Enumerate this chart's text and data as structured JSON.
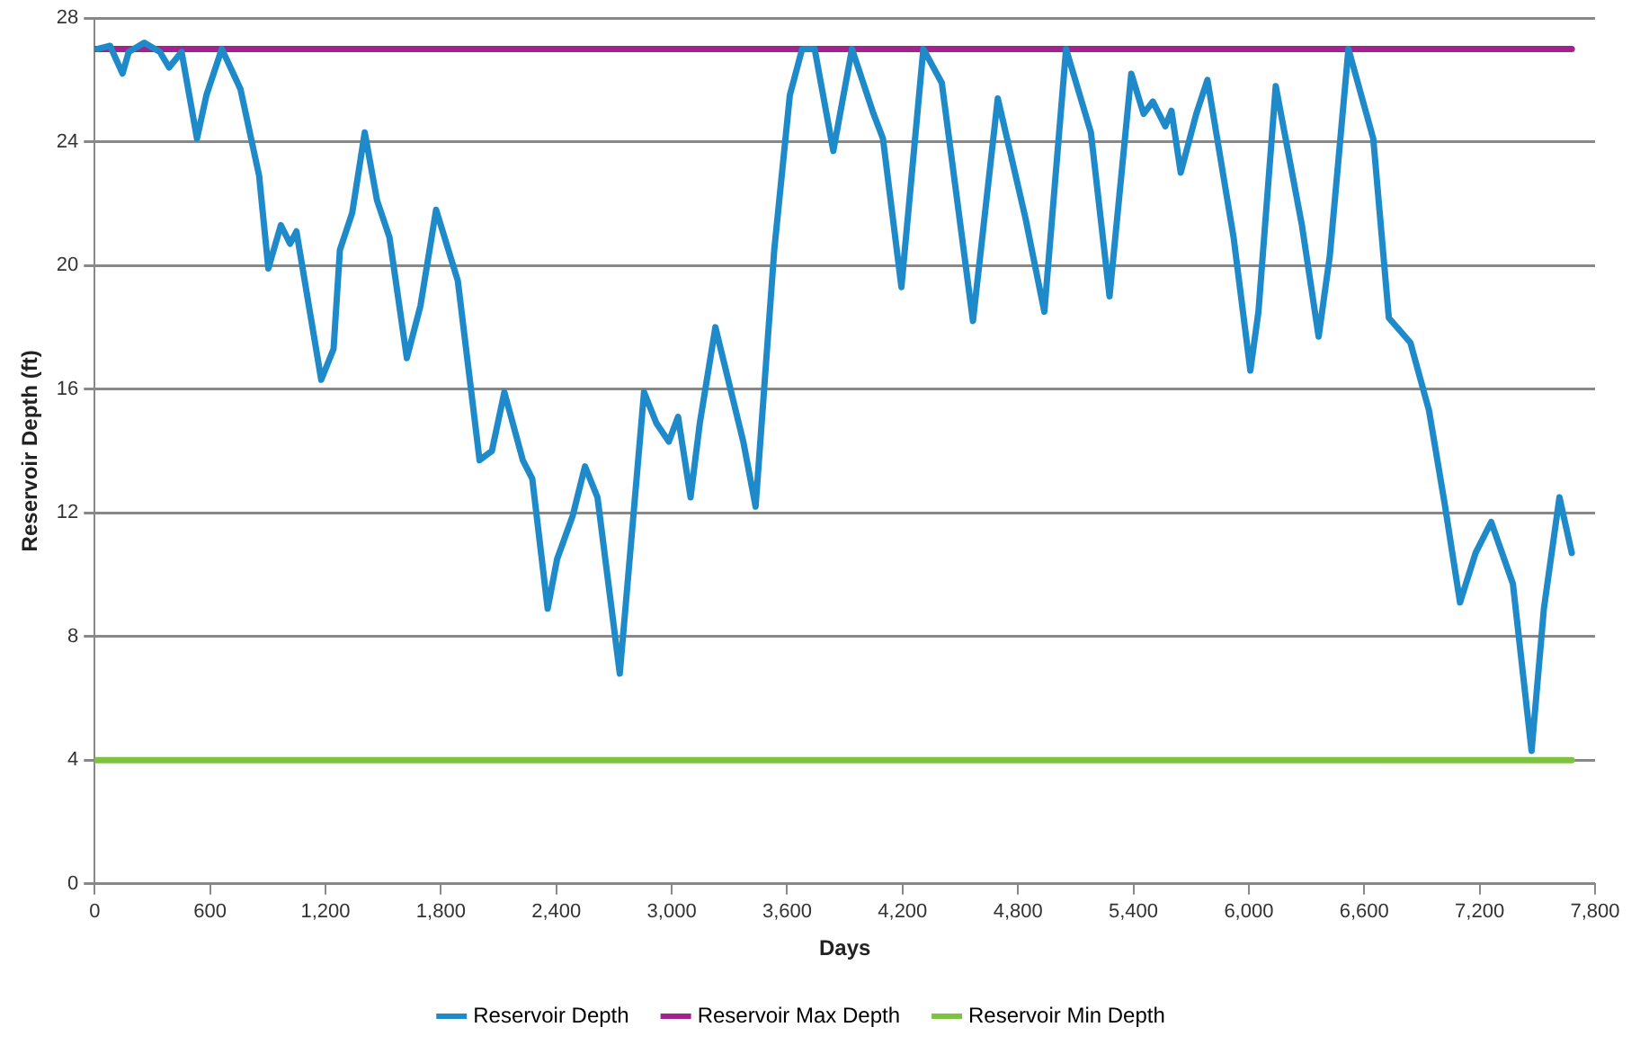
{
  "chart_data": {
    "type": "line",
    "xlabel": "Days",
    "ylabel": "Reservoir Depth (ft)",
    "xlim": [
      0,
      7800
    ],
    "xticks": [
      0,
      600,
      {
        "value": 1200,
        "label": "1,200"
      },
      {
        "value": 1800,
        "label": "1,800"
      },
      {
        "value": 2400,
        "label": "2,400"
      },
      {
        "value": 3000,
        "label": "3,000"
      },
      {
        "value": 3600,
        "label": "3,600"
      },
      {
        "value": 4200,
        "label": "4,200"
      },
      {
        "value": 4800,
        "label": "4,800"
      },
      {
        "value": 5400,
        "label": "5,400"
      },
      {
        "value": 6000,
        "label": "6,000"
      },
      {
        "value": 6600,
        "label": "6,600"
      },
      {
        "value": 7200,
        "label": "7,200"
      },
      {
        "value": 7800,
        "label": "7,800"
      }
    ],
    "ylim": [
      0,
      28
    ],
    "yticks": [
      0,
      4,
      8,
      12,
      16,
      20,
      24,
      28
    ],
    "grid": "y",
    "legend": "bottom",
    "marker": "none",
    "line_style": "solid",
    "series": [
      {
        "name": "Reservoir Depth",
        "color": "#1f8ac9",
        "x": [
          16,
          80,
          145,
          177,
          258,
          339,
          387,
          452,
          532,
          581,
          661,
          758,
          855,
          903,
          968,
          1016,
          1049,
          1178,
          1242,
          1275,
          1339,
          1404,
          1468,
          1533,
          1623,
          1694,
          1775,
          1888,
          2001,
          2065,
          2130,
          2226,
          2275,
          2355,
          2404,
          2485,
          2549,
          2614,
          2730,
          2856,
          2920,
          2985,
          3033,
          3098,
          3146,
          3227,
          3372,
          3436,
          3533,
          3614,
          3678,
          3743,
          3840,
          3937,
          4049,
          4098,
          4194,
          4308,
          4404,
          4566,
          4695,
          4840,
          4872,
          4937,
          5050,
          5179,
          5276,
          5389,
          5453,
          5501,
          5566,
          5598,
          5646,
          5727,
          5785,
          5921,
          6008,
          6050,
          6140,
          6276,
          6363,
          6421,
          6518,
          6647,
          6728,
          6840,
          6937,
          7018,
          7098,
          7179,
          7260,
          7373,
          7470,
          7534,
          7615,
          7679
        ],
        "values": [
          27.0,
          27.1,
          26.2,
          26.9,
          27.2,
          26.9,
          26.4,
          26.9,
          24.1,
          25.5,
          27.0,
          25.7,
          22.9,
          19.9,
          21.3,
          20.7,
          21.1,
          16.3,
          17.3,
          20.5,
          21.7,
          24.3,
          22.1,
          20.9,
          17.0,
          18.7,
          21.8,
          19.5,
          13.7,
          14.0,
          15.9,
          13.7,
          13.1,
          8.9,
          10.5,
          11.9,
          13.5,
          12.5,
          6.8,
          15.9,
          14.9,
          14.3,
          15.1,
          12.5,
          14.9,
          18.0,
          14.3,
          12.2,
          20.5,
          25.5,
          27.0,
          27.0,
          23.7,
          27.0,
          24.9,
          24.1,
          19.3,
          27.0,
          25.9,
          18.2,
          25.4,
          21.5,
          20.5,
          18.5,
          27.0,
          24.3,
          19.0,
          26.2,
          24.9,
          25.3,
          24.5,
          25.0,
          23.0,
          24.9,
          26.0,
          20.9,
          16.6,
          18.5,
          25.8,
          21.3,
          17.7,
          20.3,
          27.0,
          24.1,
          18.3,
          17.5,
          15.3,
          12.3,
          9.1,
          10.7,
          11.7,
          9.7,
          4.3,
          8.9,
          12.5,
          10.7
        ]
      },
      {
        "name": "Reservoir Max Depth",
        "color": "#a3228e",
        "x": [
          0,
          7679
        ],
        "values": [
          27,
          27
        ]
      },
      {
        "name": "Reservoir Min Depth",
        "color": "#7ec242",
        "x": [
          0,
          7679
        ],
        "values": [
          4,
          4
        ]
      }
    ]
  }
}
